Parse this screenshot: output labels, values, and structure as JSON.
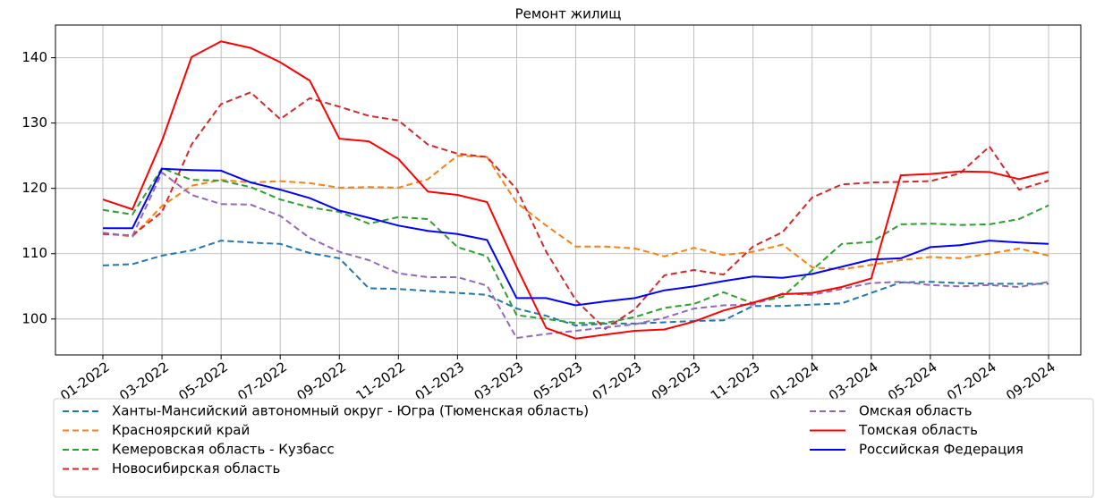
{
  "chart_data": {
    "type": "line",
    "title": "Ремонт жилищ",
    "categories": [
      "01-2022",
      null,
      "03-2022",
      null,
      "05-2022",
      null,
      "07-2022",
      null,
      "09-2022",
      null,
      "11-2022",
      null,
      "01-2023",
      null,
      "03-2023",
      null,
      "05-2023",
      null,
      "07-2023",
      null,
      "09-2023",
      null,
      "11-2023",
      null,
      "01-2024",
      null,
      "03-2024",
      null,
      "05-2024",
      null,
      "07-2024",
      null,
      "09-2024"
    ],
    "series": [
      {
        "name": "Ханты-Мансийский автономный округ - Югра (Тюменская область)",
        "color": "#1f77b4",
        "style": "dashed",
        "values": [
          108.2,
          108.4,
          109.7,
          110.5,
          112.0,
          111.7,
          111.5,
          110.1,
          109.3,
          104.7,
          104.6,
          104.3,
          104.0,
          103.7,
          101.6,
          100.5,
          99.0,
          99.3,
          99.3,
          99.5,
          99.7,
          99.8,
          102.0,
          102.0,
          102.2,
          102.4,
          104.0,
          105.6,
          105.7,
          105.5,
          105.4,
          105.4,
          105.4
        ]
      },
      {
        "name": "Красноярский край",
        "color": "#ff7f0e",
        "style": "dashed",
        "values": [
          113.2,
          112.6,
          117.3,
          120.4,
          121.3,
          120.9,
          121.1,
          120.8,
          120.1,
          120.2,
          120.1,
          121.4,
          125.0,
          124.8,
          117.8,
          114.3,
          111.1,
          111.1,
          110.8,
          109.6,
          110.9,
          109.8,
          110.3,
          111.4,
          107.9,
          107.6,
          108.3,
          109.0,
          109.5,
          109.3,
          110.0,
          110.8,
          109.7
        ]
      },
      {
        "name": "Кемеровская область - Кузбасс",
        "color": "#2ca02c",
        "style": "dashed",
        "values": [
          116.7,
          116.0,
          123.1,
          121.3,
          121.2,
          120.2,
          118.3,
          117.1,
          116.4,
          114.6,
          115.6,
          115.3,
          111.0,
          109.6,
          100.6,
          100.0,
          99.4,
          99.4,
          100.3,
          101.7,
          102.3,
          104.1,
          102.4,
          103.4,
          107.5,
          111.5,
          111.8,
          114.5,
          114.6,
          114.4,
          114.5,
          115.3,
          117.4
        ]
      },
      {
        "name": "Новосибирская область",
        "color": "#d62728",
        "style": "dashed",
        "values": [
          113.0,
          112.8,
          116.4,
          126.7,
          132.9,
          134.7,
          130.6,
          133.8,
          132.5,
          131.1,
          130.4,
          126.7,
          125.3,
          124.8,
          119.9,
          110.3,
          102.9,
          98.5,
          101.5,
          106.7,
          107.5,
          106.8,
          111.1,
          113.3,
          118.6,
          120.6,
          120.9,
          121.0,
          121.1,
          122.3,
          126.4,
          119.8,
          121.2
        ]
      },
      {
        "name": "Омская область",
        "color": "#9467bd",
        "style": "dashed",
        "values": [
          113.2,
          112.7,
          122.4,
          119.0,
          117.6,
          117.5,
          115.8,
          112.4,
          110.3,
          109.0,
          107.0,
          106.4,
          106.4,
          105.1,
          97.1,
          97.7,
          98.2,
          98.7,
          99.2,
          100.2,
          101.6,
          102.1,
          102.2,
          103.9,
          103.7,
          104.6,
          105.5,
          105.7,
          105.2,
          105.0,
          105.2,
          104.9,
          105.7
        ]
      },
      {
        "name": "Томская область",
        "color": "#ff0000",
        "style": "solid",
        "values": [
          118.3,
          116.8,
          127.3,
          140.1,
          142.5,
          141.5,
          139.3,
          136.5,
          127.6,
          127.2,
          124.5,
          119.5,
          119.0,
          117.9,
          108.0,
          98.6,
          97.0,
          97.6,
          98.2,
          98.4,
          99.6,
          101.3,
          102.5,
          103.8,
          104.0,
          104.9,
          106.2,
          122.0,
          122.2,
          122.6,
          122.5,
          121.4,
          122.5
        ]
      },
      {
        "name": "Российская Федерация",
        "color": "#0000ff",
        "style": "solid",
        "values": [
          113.9,
          113.9,
          123.0,
          122.8,
          122.7,
          120.9,
          119.8,
          118.5,
          116.6,
          115.5,
          114.3,
          113.5,
          113.0,
          112.1,
          103.2,
          103.2,
          102.1,
          102.7,
          103.2,
          104.4,
          105.0,
          105.8,
          106.5,
          106.3,
          106.9,
          108.0,
          109.1,
          109.3,
          111.0,
          111.3,
          112.0,
          111.7,
          111.5
        ]
      }
    ],
    "ylim": [
      94.5,
      145
    ],
    "yticks": [
      100,
      110,
      120,
      130,
      140
    ],
    "grid": true
  }
}
